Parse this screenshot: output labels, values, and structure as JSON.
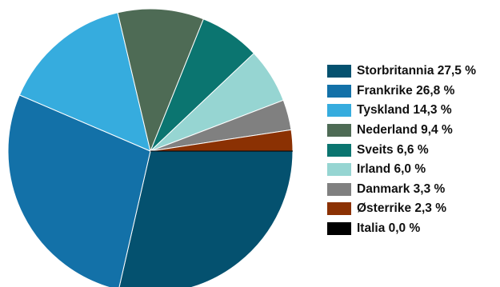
{
  "chart_data": {
    "type": "pie",
    "title": "",
    "legend_position": "right",
    "slice_order": "clockwise from 3 o'clock, starting with the first category",
    "categories": [
      "Storbritannia",
      "Frankrike",
      "Tyskland",
      "Nederland",
      "Sveits",
      "Irland",
      "Danmark",
      "Østerrike",
      "Italia"
    ],
    "values": [
      27.5,
      26.8,
      14.3,
      9.4,
      6.6,
      6.0,
      3.3,
      2.3,
      0.0
    ],
    "unit": "%",
    "colors": [
      "#04516f",
      "#1371a8",
      "#36acde",
      "#4e6b55",
      "#0b7570",
      "#96d5d2",
      "#808080",
      "#8b3103",
      "#000000"
    ],
    "slice_edge_color": "#ffffff",
    "legend_labels": [
      "Storbritannia 27,5 %",
      "Frankrike 26,8 %",
      "Tyskland 14,3 %",
      "Nederland 9,4 %",
      "Sveits 6,6 %",
      "Irland 6,0 %",
      "Danmark 3,3 %",
      "Østerrike 2,3 %",
      "Italia 0,0 %"
    ]
  }
}
